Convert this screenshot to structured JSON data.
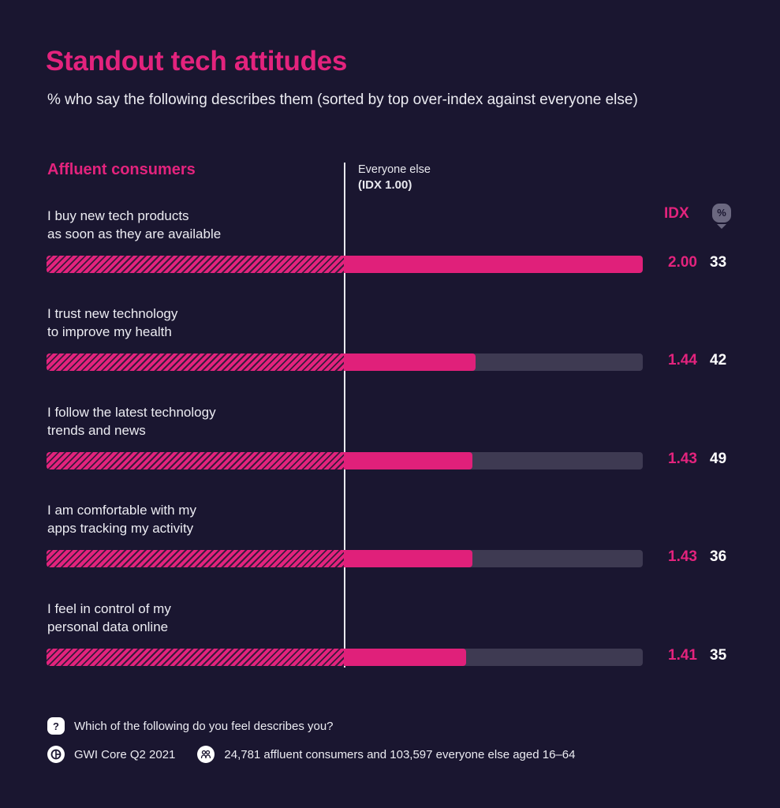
{
  "header": {
    "title": "Standout tech attitudes",
    "subtitle": "% who say the following describes them (sorted by top over-index against everyone else)"
  },
  "legend": {
    "group_label": "Affluent consumers",
    "reference_label": "Everyone else",
    "reference_idx": "(IDX 1.00)",
    "idx_header": "IDX",
    "pct_header": "%"
  },
  "colors": {
    "accent": "#e3237d",
    "background": "#1a1630",
    "track": "#3e3a52"
  },
  "chart_data": {
    "type": "bar",
    "title": "Standout tech attitudes",
    "subtitle": "% who say the following describes them (sorted by top over-index against everyone else)",
    "reference": {
      "label": "Everyone else",
      "idx": 1.0
    },
    "idx_max": 2.0,
    "categories": [
      "I buy new tech products as soon as they are available",
      "I trust new technology to improve my health",
      "I follow the latest technology trends and news",
      "I am comfortable with my apps tracking my activity",
      "I feel in control of my personal data online"
    ],
    "series": [
      {
        "name": "IDX",
        "values": [
          2.0,
          1.44,
          1.43,
          1.43,
          1.41
        ]
      },
      {
        "name": "%",
        "values": [
          33,
          42,
          49,
          36,
          35
        ]
      }
    ]
  },
  "rows": [
    {
      "line1": "I buy new tech products",
      "line2": "as soon as they are available",
      "idx": "2.00",
      "pct": "33"
    },
    {
      "line1": "I trust new technology",
      "line2": "to improve my health",
      "idx": "1.44",
      "pct": "42"
    },
    {
      "line1": "I follow the latest technology",
      "line2": "trends and news",
      "idx": "1.43",
      "pct": "49"
    },
    {
      "line1": "I am comfortable with my",
      "line2": "apps tracking my activity",
      "idx": "1.43",
      "pct": "36"
    },
    {
      "line1": "I feel in control of my",
      "line2": "personal data online",
      "idx": "1.41",
      "pct": "35"
    }
  ],
  "footer": {
    "question_icon": "question-icon",
    "question": "Which of the following do you feel describes you?",
    "source_icon": "gwi-logo-icon",
    "source": "GWI Core Q2 2021",
    "sample_icon": "people-icon",
    "sample": "24,781 affluent consumers and 103,597 everyone else aged 16–64"
  }
}
